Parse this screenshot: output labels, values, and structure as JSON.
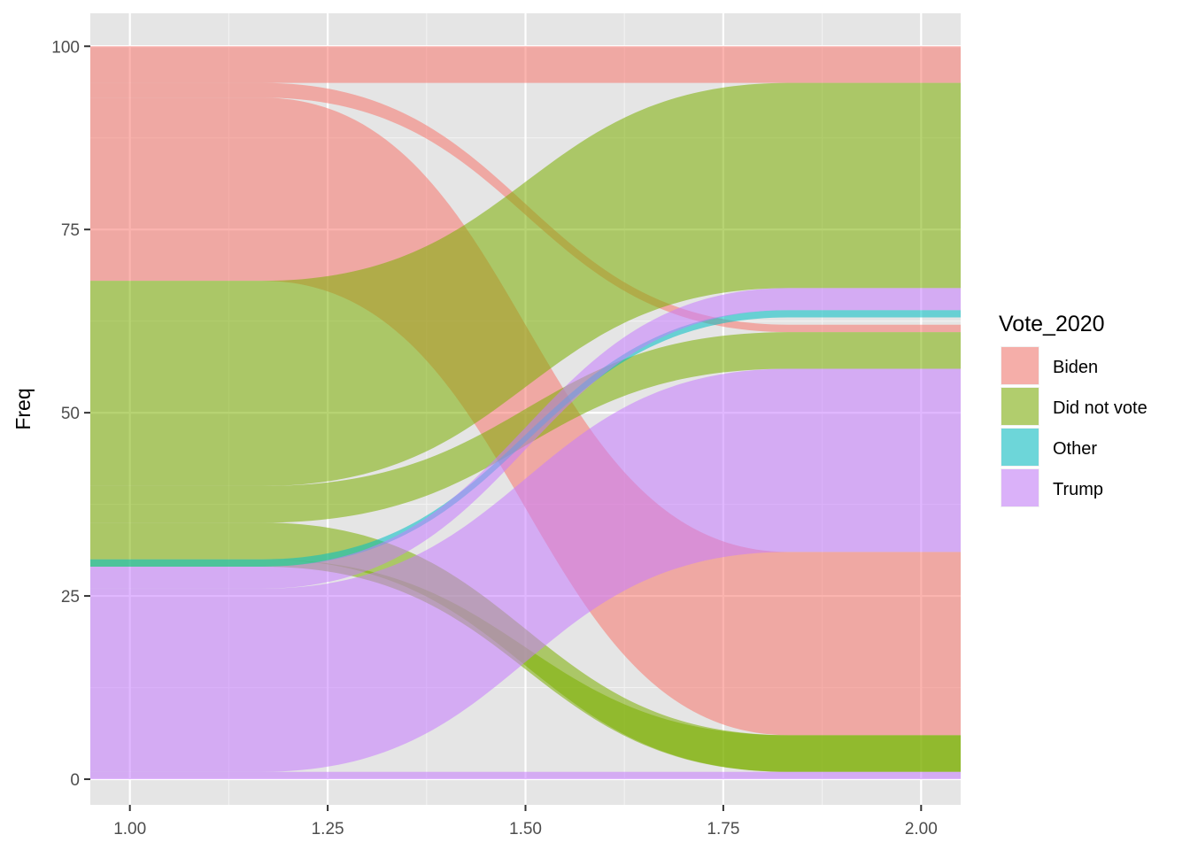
{
  "chart_data": {
    "type": "alluvial",
    "title": "",
    "xlabel": "",
    "ylabel": "Freq",
    "xlim": [
      0.95,
      2.05
    ],
    "ylim": [
      -3.5,
      104.5
    ],
    "x_ticks": [
      1.0,
      1.25,
      1.5,
      1.75,
      2.0
    ],
    "x_tick_labels": [
      "1.00",
      "1.25",
      "1.50",
      "1.75",
      "2.00"
    ],
    "y_ticks": [
      0,
      25,
      50,
      75,
      100
    ],
    "y_tick_labels": [
      "0",
      "25",
      "50",
      "75",
      "100"
    ],
    "grid": true,
    "stratum_x": [
      1.0,
      2.0
    ],
    "flow_fill_alpha": 0.55,
    "legend": {
      "title": "Vote_2020",
      "position": "right",
      "entries": [
        {
          "label": "Biden",
          "color": "#F8766D"
        },
        {
          "label": "Did not vote",
          "color": "#7CAE00"
        },
        {
          "label": "Other",
          "color": "#00BFC4"
        },
        {
          "label": "Trump",
          "color": "#C77CFF"
        }
      ]
    },
    "flows": [
      {
        "fill": "Biden",
        "left": [
          68,
          93
        ],
        "right": [
          6,
          31
        ]
      },
      {
        "fill": "Biden",
        "left": [
          93,
          95
        ],
        "right": [
          61,
          62
        ]
      },
      {
        "fill": "Biden",
        "left": [
          95,
          100
        ],
        "right": [
          95,
          100
        ]
      },
      {
        "fill": "Did not vote",
        "left": [
          29,
          30
        ],
        "right": [
          1,
          6
        ]
      },
      {
        "fill": "Did not vote",
        "left": [
          30,
          35
        ],
        "right": [
          1,
          6
        ]
      },
      {
        "fill": "Did not vote",
        "left": [
          35,
          40
        ],
        "right": [
          56,
          61
        ]
      },
      {
        "fill": "Did not vote",
        "left": [
          40,
          68
        ],
        "right": [
          67,
          95
        ]
      },
      {
        "fill": "Other",
        "left": [
          29,
          30
        ],
        "right": [
          63,
          64
        ]
      },
      {
        "fill": "Trump",
        "left": [
          0,
          1
        ],
        "right": [
          0,
          1
        ]
      },
      {
        "fill": "Trump",
        "left": [
          1,
          26
        ],
        "right": [
          31,
          56
        ]
      },
      {
        "fill": "Trump",
        "left": [
          26,
          29
        ],
        "right": [
          64,
          67
        ]
      }
    ]
  }
}
